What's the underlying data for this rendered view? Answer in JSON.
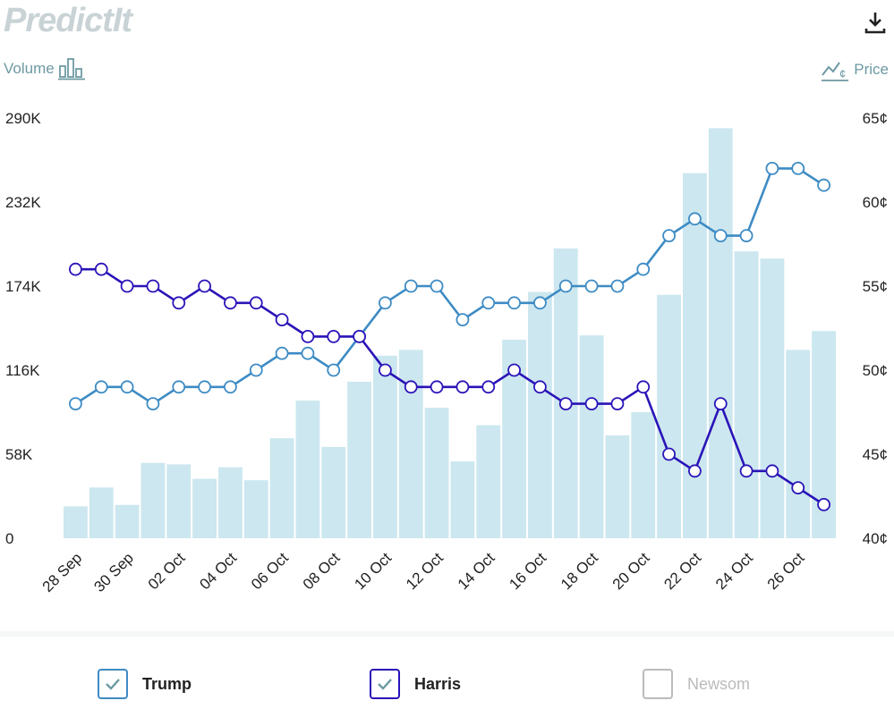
{
  "header": {
    "logo_text": "PredictIt",
    "volume_label": "Volume",
    "price_label": "Price"
  },
  "colors": {
    "trump": "#3d8bc4",
    "harris": "#2a14b8",
    "bars": "#cce7ef",
    "newsom": "#bbbbbb"
  },
  "chart_data": {
    "type": "line",
    "x": [
      "28 Sep",
      "29 Sep",
      "30 Sep",
      "01 Oct",
      "02 Oct",
      "03 Oct",
      "04 Oct",
      "05 Oct",
      "06 Oct",
      "07 Oct",
      "08 Oct",
      "09 Oct",
      "10 Oct",
      "11 Oct",
      "12 Oct",
      "13 Oct",
      "14 Oct",
      "15 Oct",
      "16 Oct",
      "17 Oct",
      "18 Oct",
      "19 Oct",
      "20 Oct",
      "21 Oct",
      "22 Oct",
      "23 Oct",
      "24 Oct",
      "25 Oct",
      "26 Oct",
      "27 Oct"
    ],
    "x_tick_labels": [
      "28 Sep",
      "30 Sep",
      "02 Oct",
      "04 Oct",
      "06 Oct",
      "08 Oct",
      "10 Oct",
      "12 Oct",
      "14 Oct",
      "16 Oct",
      "18 Oct",
      "20 Oct",
      "22 Oct",
      "24 Oct",
      "26 Oct"
    ],
    "volume": {
      "values": [
        22000,
        35000,
        23000,
        52000,
        51000,
        41000,
        49000,
        40000,
        69000,
        95000,
        63000,
        108000,
        126000,
        130000,
        90000,
        53000,
        78000,
        137000,
        170000,
        200000,
        140000,
        71000,
        87000,
        168000,
        252000,
        283000,
        198000,
        193000,
        130000,
        143000
      ],
      "ylim": [
        0,
        290000
      ],
      "ticks": [
        "0",
        "58K",
        "116K",
        "174K",
        "232K",
        "290K"
      ]
    },
    "price": {
      "ylim": [
        40,
        65
      ],
      "ticks": [
        "40¢",
        "45¢",
        "50¢",
        "55¢",
        "60¢",
        "65¢"
      ]
    },
    "series": [
      {
        "name": "Trump",
        "values": [
          48,
          49,
          49,
          48,
          49,
          49,
          49,
          50,
          51,
          51,
          50,
          52,
          54,
          55,
          55,
          53,
          54,
          54,
          54,
          55,
          55,
          55,
          56,
          58,
          59,
          58,
          58,
          62,
          62,
          61
        ]
      },
      {
        "name": "Harris",
        "values": [
          56,
          56,
          55,
          55,
          54,
          55,
          54,
          54,
          53,
          52,
          52,
          52,
          50,
          49,
          49,
          49,
          49,
          50,
          49,
          48,
          48,
          48,
          49,
          45,
          44,
          48,
          44,
          44,
          43,
          42
        ]
      }
    ]
  },
  "legend": [
    {
      "label": "Trump",
      "checked": true
    },
    {
      "label": "Harris",
      "checked": true
    },
    {
      "label": "Newsom",
      "checked": false
    }
  ]
}
